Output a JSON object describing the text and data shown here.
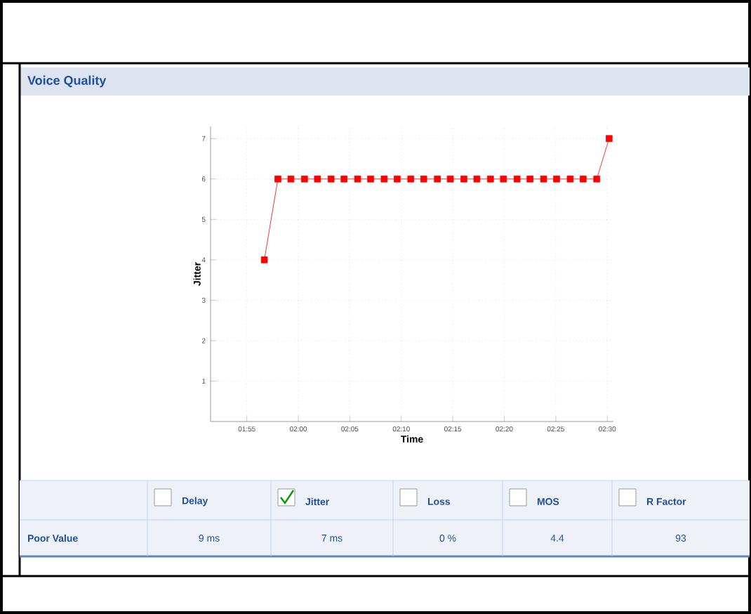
{
  "chart_data": {
    "type": "line",
    "title": "Voice Quality",
    "xlabel": "Time",
    "ylabel": "Jitter",
    "x": [
      1.945,
      1.967,
      1.988,
      2.01,
      2.031,
      2.053,
      2.074,
      2.096,
      2.117,
      2.139,
      2.16,
      2.182,
      2.203,
      2.225,
      2.246,
      2.268,
      2.289,
      2.311,
      2.332,
      2.354,
      2.375,
      2.397,
      2.418,
      2.44,
      2.461,
      2.483,
      2.503
    ],
    "series": [
      {
        "color": "#ff0000",
        "values": [
          4,
          6,
          6,
          6,
          6,
          6,
          6,
          6,
          6,
          6,
          6,
          6,
          6,
          6,
          6,
          6,
          6,
          6,
          6,
          6,
          6,
          6,
          6,
          6,
          6,
          6,
          7
        ]
      }
    ],
    "xlim": [
      1.858,
      2.51
    ],
    "ylim": [
      0,
      7.3
    ],
    "xticks": [
      {
        "value": 1.9167,
        "label": "01:55"
      },
      {
        "value": 2.0,
        "label": "02:00"
      },
      {
        "value": 2.0833,
        "label": "02:05"
      },
      {
        "value": 2.1667,
        "label": "02:10"
      },
      {
        "value": 2.25,
        "label": "02:15"
      },
      {
        "value": 2.3333,
        "label": "02:20"
      },
      {
        "value": 2.4167,
        "label": "02:25"
      },
      {
        "value": 2.5,
        "label": "02:30"
      }
    ],
    "yticks": [
      1,
      2,
      3,
      4,
      5,
      6,
      7
    ],
    "grid": true,
    "marker": "square",
    "line_style": "solid",
    "annotations": [
      "Delay",
      "Jitter",
      "Loss",
      "MOS",
      "R Factor",
      "Poor Value",
      "9 ms",
      "7 ms",
      "0 %",
      "4.4",
      "93"
    ]
  }
}
